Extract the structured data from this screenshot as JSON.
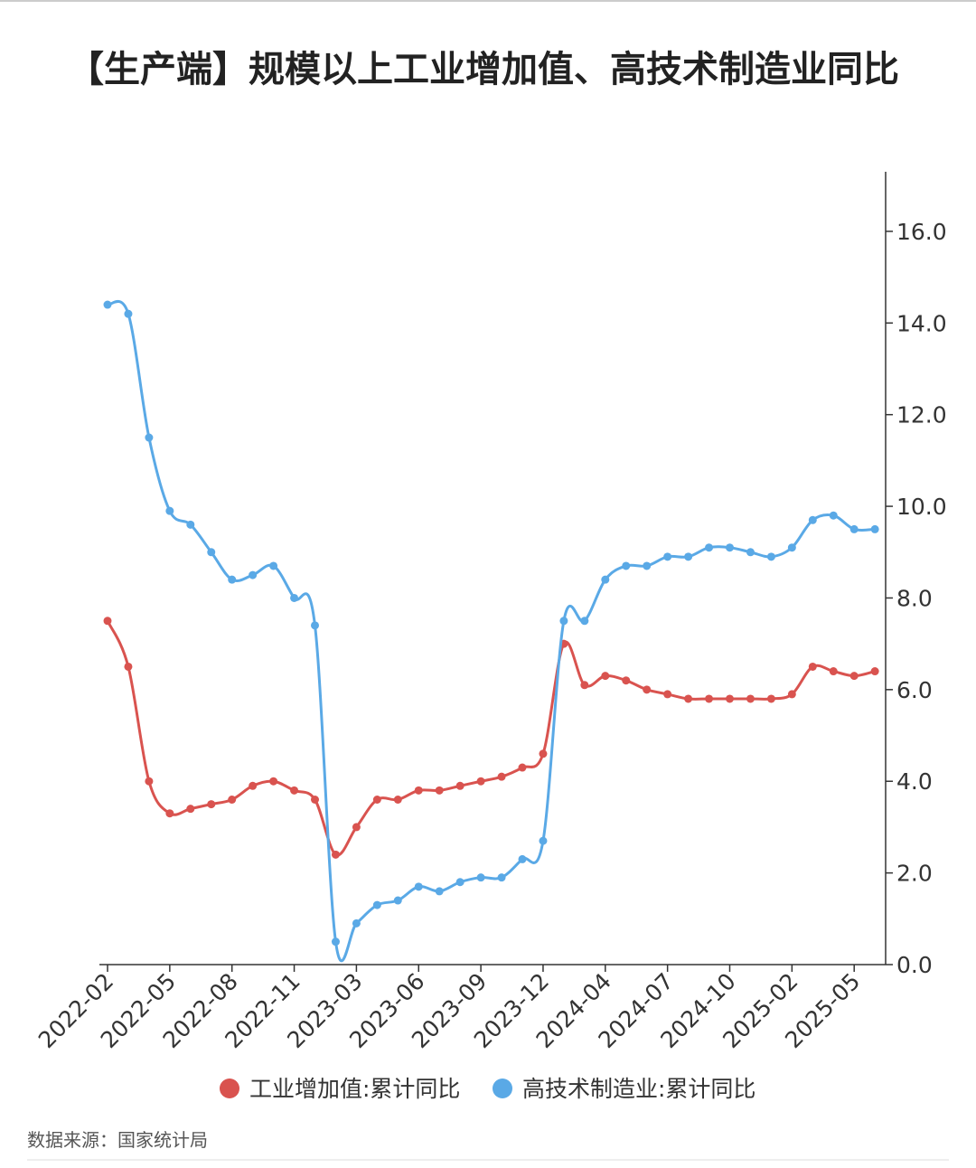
{
  "chart_data": {
    "type": "line",
    "title": "【生产端】规模以上工业增加值、高技术制造业同比",
    "source": "数据来源：国家统计局",
    "categories": [
      "2022-02",
      null,
      null,
      "2022-05",
      null,
      null,
      "2022-08",
      null,
      null,
      "2022-11",
      null,
      null,
      "2023-03",
      null,
      null,
      "2023-06",
      null,
      null,
      "2023-09",
      null,
      null,
      "2023-12",
      null,
      null,
      "2024-04",
      null,
      null,
      "2024-07",
      null,
      null,
      "2024-10",
      null,
      null,
      "2025-02",
      null,
      null,
      "2025-05",
      null
    ],
    "series": [
      {
        "name": "工业增加值:累计同比",
        "color": "#d9534f",
        "values": [
          7.5,
          6.5,
          4.0,
          3.3,
          3.4,
          3.5,
          3.6,
          3.9,
          4.0,
          3.8,
          3.6,
          2.4,
          3.0,
          3.6,
          3.6,
          3.8,
          3.8,
          3.9,
          4.0,
          4.1,
          4.3,
          4.6,
          7.0,
          6.1,
          6.3,
          6.2,
          6.0,
          5.9,
          5.8,
          5.8,
          5.8,
          5.8,
          5.8,
          5.9,
          6.5,
          6.4,
          6.3,
          6.4
        ]
      },
      {
        "name": "高技术制造业:累计同比",
        "color": "#5aa9e6",
        "values": [
          14.4,
          14.2,
          11.5,
          9.9,
          9.6,
          9.0,
          8.4,
          8.5,
          8.7,
          8.0,
          7.4,
          0.5,
          0.9,
          1.3,
          1.4,
          1.7,
          1.6,
          1.8,
          1.9,
          1.9,
          2.3,
          2.7,
          7.5,
          7.5,
          8.4,
          8.7,
          8.7,
          8.9,
          8.9,
          9.1,
          9.1,
          9.0,
          8.9,
          9.1,
          9.7,
          9.8,
          9.5,
          9.5
        ]
      }
    ],
    "ylim": [
      0,
      17.3
    ],
    "yticks": [
      {
        "value": 0,
        "label": "0.0"
      },
      {
        "value": 2,
        "label": "2.0"
      },
      {
        "value": 4,
        "label": "4.0"
      },
      {
        "value": 6,
        "label": "6.0"
      },
      {
        "value": 8,
        "label": "8.0"
      },
      {
        "value": 10,
        "label": "10.0"
      },
      {
        "value": 12,
        "label": "12.0"
      },
      {
        "value": 14,
        "label": "14.0"
      },
      {
        "value": 16,
        "label": "16.0"
      }
    ],
    "y_axis_side": "right",
    "grid": false,
    "legend": "bottom"
  }
}
